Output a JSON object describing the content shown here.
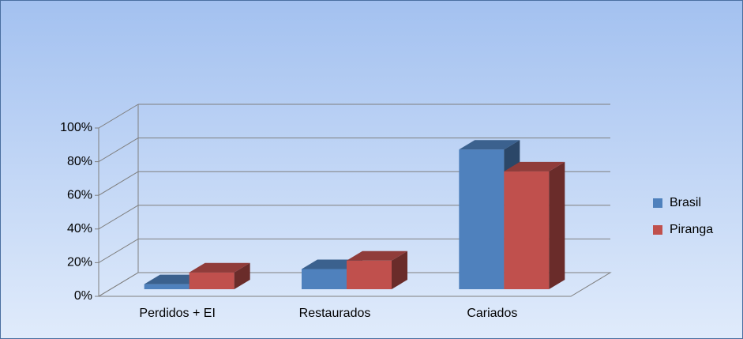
{
  "chart_data": {
    "type": "bar3d",
    "categories": [
      "Perdidos + EI",
      "Restaurados",
      "Cariados"
    ],
    "series": [
      {
        "name": "Brasil",
        "color": "#4f81bd",
        "values": [
          3,
          12,
          83
        ]
      },
      {
        "name": "Piranga",
        "color": "#c0504d",
        "values": [
          10,
          17,
          70
        ]
      }
    ],
    "ylim": [
      0,
      100
    ],
    "yticks": [
      {
        "value": 0,
        "label": "0%"
      },
      {
        "value": 20,
        "label": "20%"
      },
      {
        "value": 40,
        "label": "40%"
      },
      {
        "value": 60,
        "label": "60%"
      },
      {
        "value": 80,
        "label": "80%"
      },
      {
        "value": 100,
        "label": "100%"
      }
    ],
    "grid": true,
    "legend": "right"
  }
}
